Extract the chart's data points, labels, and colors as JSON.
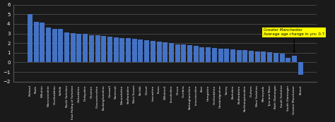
{
  "categories": [
    "Rutland",
    "Poole",
    "Wiltshire",
    "Worcestershire",
    "Herefordshire",
    "Suffolk",
    "North Yorkshire",
    "East Riding of Yorkshire",
    "Oxfordshire",
    "Derbyshire",
    "Cheshire",
    "Gloucestershire",
    "Buckinghamshire",
    "Cornwall",
    "Somerset",
    "Warwickshire",
    "Staffordshire",
    "West Sussex",
    "Norfolk",
    "Dorset",
    "Lancashire",
    "Essex",
    "Wiltshire2",
    "Lincolnshire",
    "Devon",
    "Cumbria",
    "Nottinghamshire",
    "Leicestershire",
    "Kent",
    "Hampshire",
    "Hertfordshire",
    "Cambridgeshire",
    "Surrey",
    "Berkshire",
    "Bedfordshire",
    "Northamptonshire",
    "Durham",
    "West Yorkshire",
    "Merseyside",
    "Tyne and Wear",
    "Bath Glamorgan",
    "South Yorkshire",
    "South Glamorgan",
    "Greater Manchester",
    "Bristol"
  ],
  "values": [
    5.0,
    4.2,
    4.15,
    3.6,
    3.5,
    3.45,
    3.1,
    3.05,
    3.0,
    2.95,
    2.85,
    2.8,
    2.75,
    2.65,
    2.6,
    2.55,
    2.5,
    2.45,
    2.35,
    2.3,
    2.2,
    2.15,
    2.1,
    2.0,
    1.9,
    1.85,
    1.8,
    1.7,
    1.6,
    1.55,
    1.5,
    1.45,
    1.4,
    1.35,
    1.3,
    1.25,
    1.2,
    1.15,
    1.1,
    1.05,
    1.0,
    0.9,
    0.5,
    0.7,
    -1.3
  ],
  "bar_color": "#4472c4",
  "annotation_text": "Greater Manchester\nAverage age change in yrs: 0.7",
  "annotation_bg": "#ffff00",
  "ylim": [
    -2,
    6
  ],
  "yticks": [
    -2,
    -1,
    0,
    1,
    2,
    3,
    4,
    5,
    6
  ],
  "background_color": "#1a1a1a",
  "grid_color": "#555555",
  "text_color": "#ffffff",
  "bar_width": 0.8
}
